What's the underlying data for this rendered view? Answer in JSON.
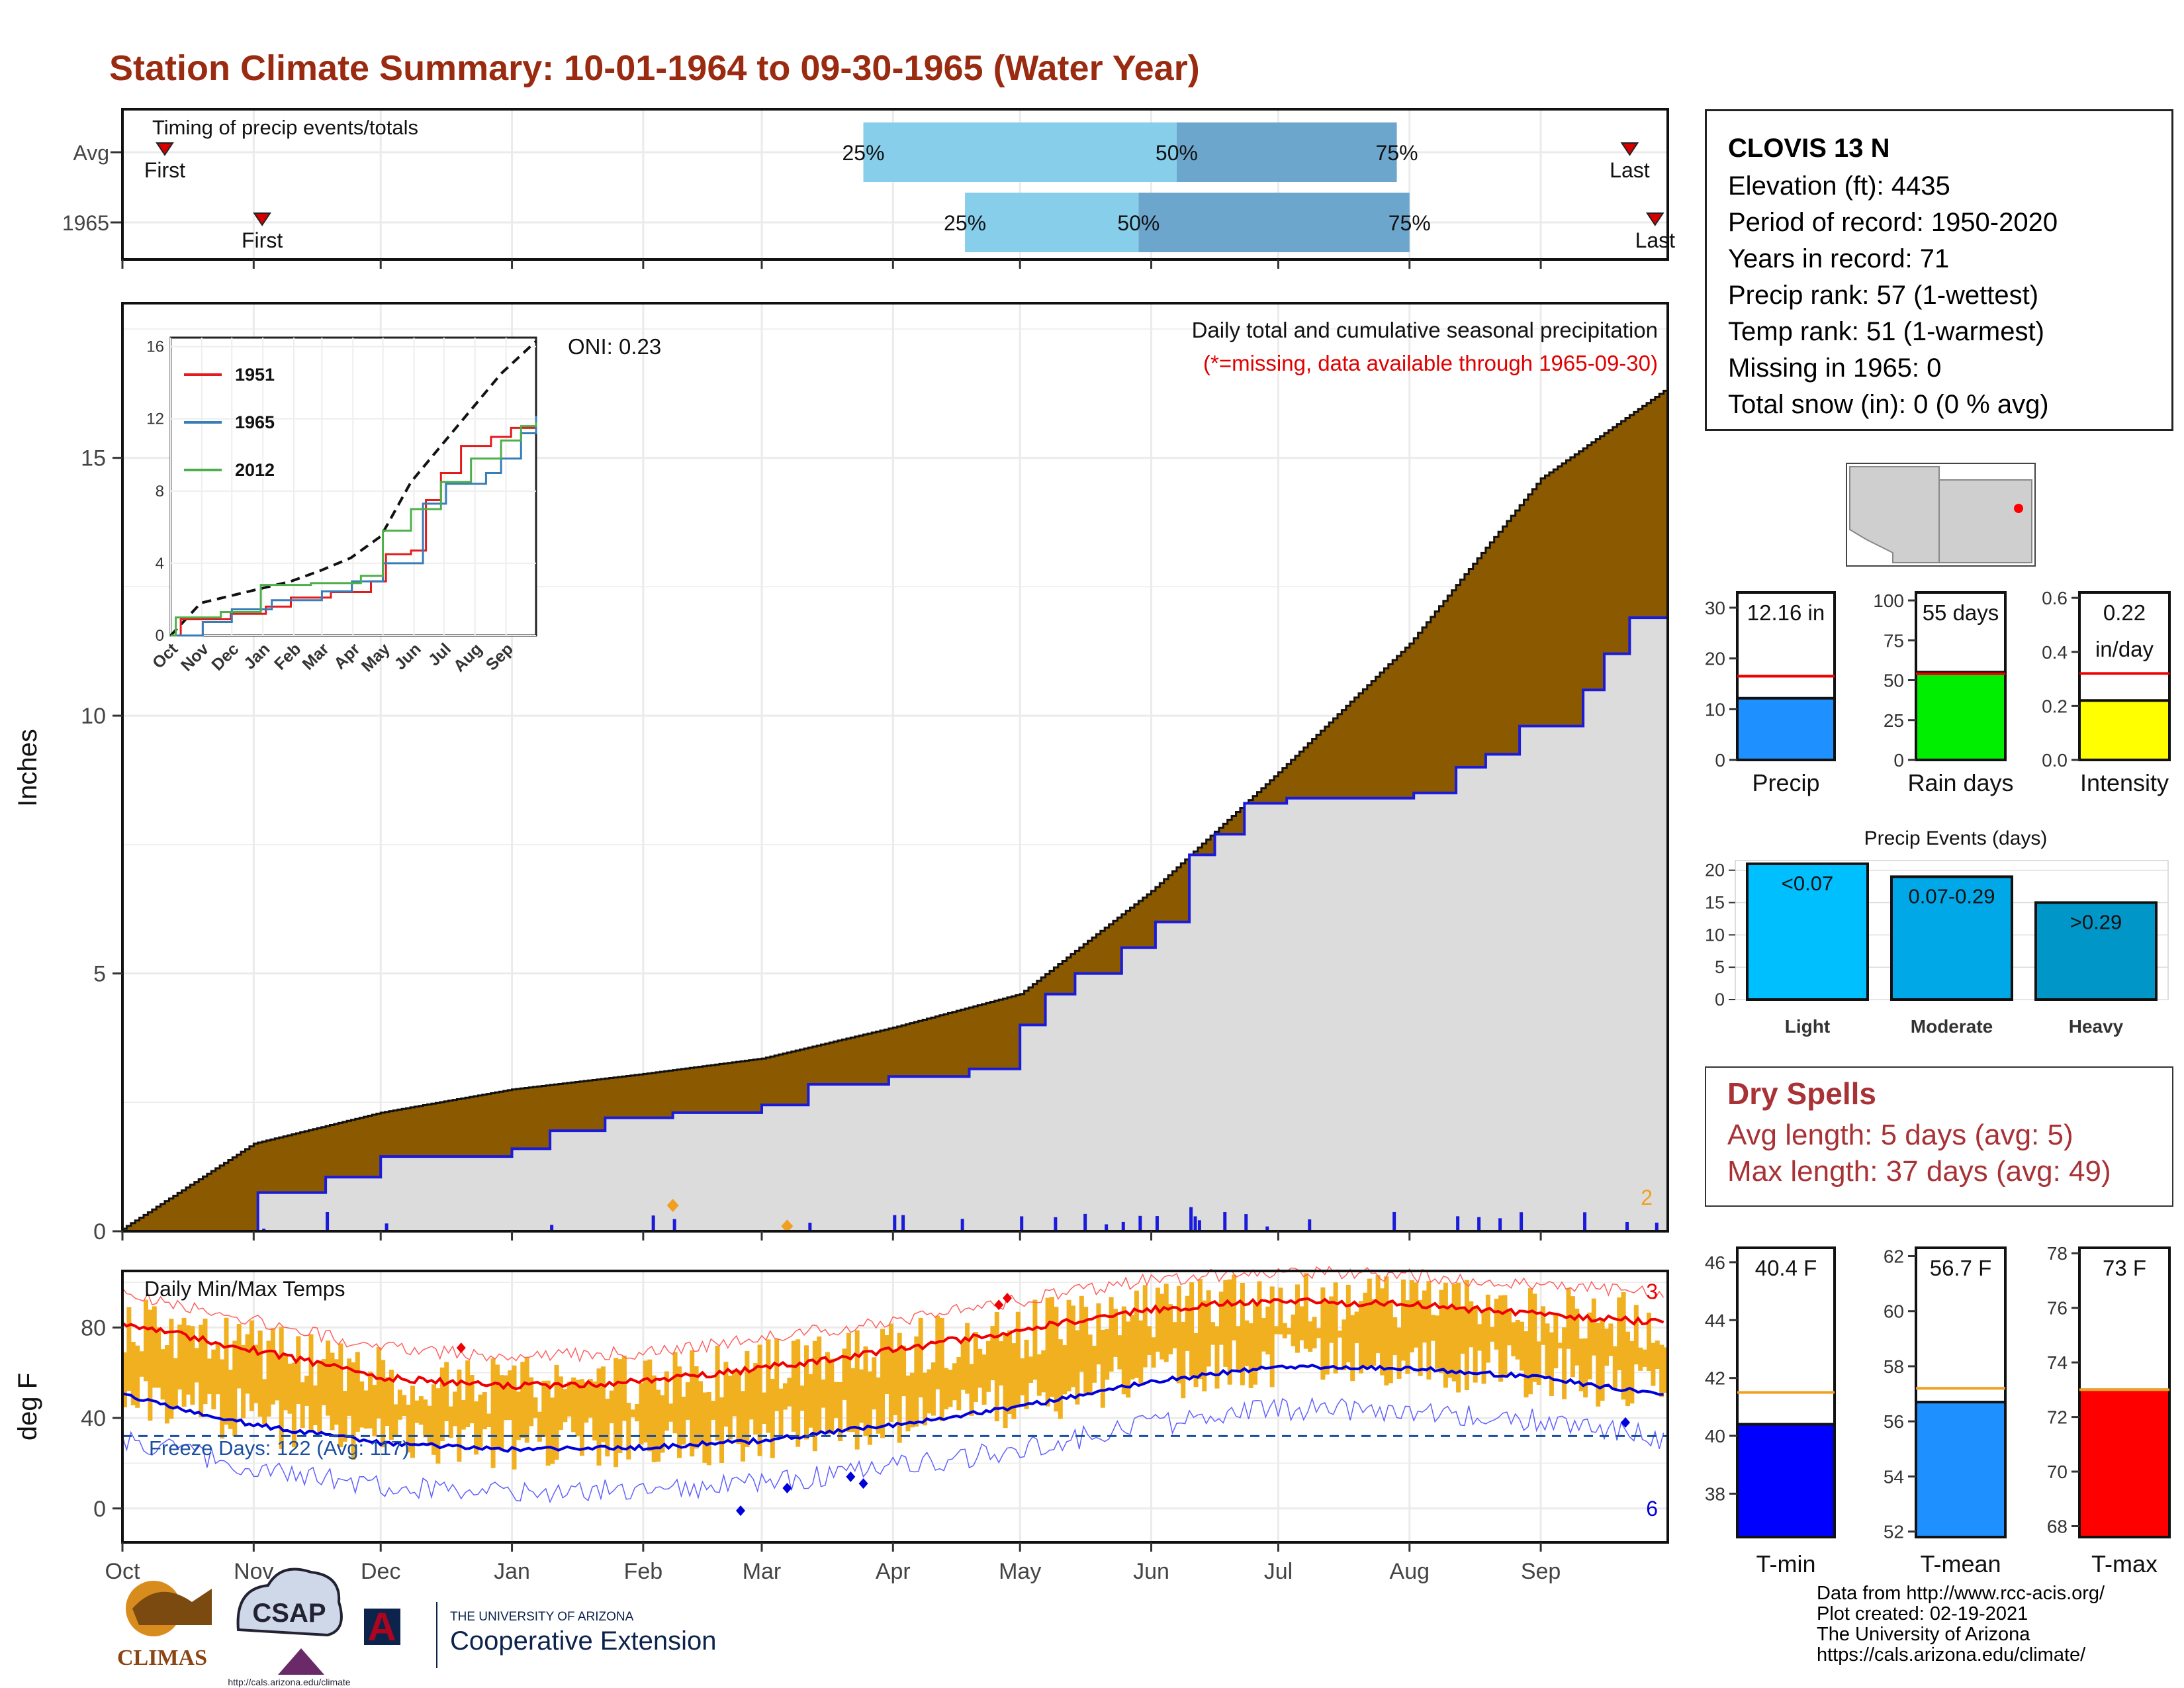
{
  "title": "Station Climate Summary: 10-01-1964 to 09-30-1965 (Water Year)",
  "timing": {
    "label": "Timing of precip events/totals",
    "rows": [
      {
        "name": "Avg",
        "first_label": "First",
        "last_label": "Last",
        "first_day": 10,
        "last_day": 356,
        "p25": 175,
        "p50": 249,
        "p75": 301
      },
      {
        "name": "1965",
        "first_label": "First",
        "last_label": "Last",
        "first_day": 33,
        "last_day": 362,
        "p25": 199,
        "p50": 240,
        "p75": 304
      }
    ],
    "pct_labels": [
      "25%",
      "50%",
      "75%"
    ]
  },
  "months": [
    "Oct",
    "Nov",
    "Dec",
    "Jan",
    "Feb",
    "Mar",
    "Apr",
    "May",
    "Jun",
    "Jul",
    "Aug",
    "Sep"
  ],
  "station": {
    "name": "CLOVIS 13 N",
    "lines": [
      "Elevation (ft): 4435",
      "Period of record: 1950-2020",
      "Years in record: 71",
      "Precip rank: 57 (1-wettest)",
      "Temp rank: 51 (1-warmest)",
      "Missing in 1965: 0",
      "Total snow (in): 0 (0 % avg)"
    ]
  },
  "precip_panel": {
    "ylabel": "Inches",
    "yticks": [
      0,
      5,
      10,
      15
    ],
    "ymax": 18,
    "title_line1": "Daily total and cumulative seasonal precipitation",
    "title_line2": "(*=missing, data available through 1965-09-30)",
    "oni_label": "ONI: 0.23",
    "corner_count": "2",
    "colors": {
      "avg_fill": "#8b5a00",
      "year_fill": "#dcdcdc",
      "year_line": "#1a1adb",
      "bars": "#1a1adb",
      "marker": "#f0a020"
    }
  },
  "inset": {
    "yticks": [
      0,
      4,
      8,
      12,
      16
    ],
    "xticks": [
      "Oct",
      "Nov",
      "Dec",
      "Jan",
      "Feb",
      "Mar",
      "Apr",
      "May",
      "Jun",
      "Jul",
      "Aug",
      "Sep"
    ],
    "legend": [
      {
        "name": "1951",
        "color": "#e41a1c"
      },
      {
        "name": "1965",
        "color": "#377eb8"
      },
      {
        "name": "2012",
        "color": "#4daf4a"
      }
    ]
  },
  "temp_panel": {
    "ylabel": "deg F",
    "yticks": [
      0,
      40,
      80
    ],
    "label": "Daily Min/Max Temps",
    "freeze_label": "Freeze Days: 122 (Avg: 117)",
    "max_records": "3",
    "min_records": "6",
    "freeze_line": 32
  },
  "bars": {
    "precip": {
      "label": "Precip",
      "value_label": "12.16 in",
      "yticks": [
        0,
        10,
        20,
        30
      ],
      "ymax": 33,
      "value": 12.16,
      "avg": 16.5,
      "color": "#1e90ff"
    },
    "rain_days": {
      "label": "Rain days",
      "value_label": "55 days",
      "yticks": [
        0,
        25,
        50,
        75,
        100
      ],
      "ymax": 105,
      "value": 55,
      "avg": 54,
      "color": "#00ee00"
    },
    "intensity": {
      "label": "Intensity",
      "value_label_1": "0.22",
      "value_label_2": "in/day",
      "yticks": [
        "0.0",
        "0.2",
        "0.4",
        "0.6"
      ],
      "ymax": 0.62,
      "value": 0.22,
      "avg": 0.32,
      "color": "#ffff00"
    }
  },
  "events": {
    "title": "Precip Events (days)",
    "yticks": [
      0,
      5,
      10,
      15,
      20
    ],
    "ymax": 21.5,
    "categories": [
      "Light",
      "Moderate",
      "Heavy"
    ],
    "labels": [
      "<0.07",
      "0.07-0.29",
      ">0.29"
    ],
    "values": [
      21,
      19,
      15
    ],
    "colors": [
      "#00bfff",
      "#00a8e8",
      "#0096c8"
    ]
  },
  "dry_spells": {
    "title": "Dry Spells",
    "avg_line": "Avg length: 5 days (avg: 5)",
    "max_line": "Max length: 37 days (avg: 49)"
  },
  "temp_bars": [
    {
      "label": "T-min",
      "value_label": "40.4 F",
      "value": 40.4,
      "avg": 41.5,
      "ymin": 36.5,
      "ymax": 46.5,
      "yticks": [
        38,
        40,
        42,
        44,
        46
      ],
      "color": "#0000ff"
    },
    {
      "label": "T-mean",
      "value_label": "56.7 F",
      "value": 56.7,
      "avg": 57.2,
      "ymin": 51.8,
      "ymax": 62.3,
      "yticks": [
        52,
        54,
        56,
        58,
        60,
        62
      ],
      "color": "#1e90ff"
    },
    {
      "label": "T-max",
      "value_label": "73 F",
      "value": 73.0,
      "avg": 73.0,
      "ymin": 67.6,
      "ymax": 78.2,
      "yticks": [
        68,
        70,
        72,
        74,
        76,
        78
      ],
      "color": "#ff0000"
    }
  ],
  "footer": [
    "Data from http://www.rcc-acis.org/",
    "Plot created: 02-19-2021",
    "The University of Arizona",
    "https://cals.arizona.edu/climate/"
  ],
  "logos": {
    "climas": "CLIMAS",
    "csap": "CSAP",
    "csap_url": "http://cals.arizona.edu/climate",
    "ua_small": "THE UNIVERSITY OF ARIZONA",
    "ua_big": "Cooperative Extension"
  },
  "chart_data": [
    {
      "type": "area",
      "title": "Daily total and cumulative seasonal precipitation",
      "ylabel": "Inches",
      "ylim": [
        0,
        18
      ],
      "x": [
        0,
        31,
        61,
        92,
        123,
        151,
        182,
        212,
        243,
        273,
        304,
        335,
        364
      ],
      "x_tick_labels": [
        "Oct",
        "Nov",
        "Dec",
        "Jan",
        "Feb",
        "Mar",
        "Apr",
        "May",
        "Jun",
        "Jul",
        "Aug",
        "Sep",
        ""
      ],
      "series": [
        {
          "name": "Avg",
          "values": [
            0.05,
            1.7,
            2.3,
            2.75,
            3.05,
            3.35,
            3.95,
            4.6,
            6.6,
            8.9,
            11.4,
            14.6,
            16.3
          ]
        },
        {
          "name": "1965",
          "values": [
            0.0,
            0.75,
            1.45,
            1.6,
            2.2,
            2.45,
            2.9,
            4.0,
            7.3,
            8.4,
            9.8,
            11.9,
            12.16
          ]
        }
      ]
    },
    {
      "type": "line",
      "title": "Daily Min/Max Temps",
      "ylabel": "deg F",
      "ylim": [
        -15,
        105
      ],
      "x": [
        0,
        31,
        61,
        92,
        123,
        151,
        182,
        212,
        243,
        273,
        304,
        335,
        364
      ],
      "series": [
        {
          "name": "Avg max",
          "values": [
            82,
            70,
            58,
            54,
            56,
            62,
            70,
            79,
            88,
            92,
            90,
            86,
            82
          ]
        },
        {
          "name": "Avg min",
          "values": [
            50,
            37,
            29,
            26,
            27,
            30,
            37,
            45,
            56,
            63,
            62,
            58,
            50
          ]
        }
      ]
    }
  ]
}
